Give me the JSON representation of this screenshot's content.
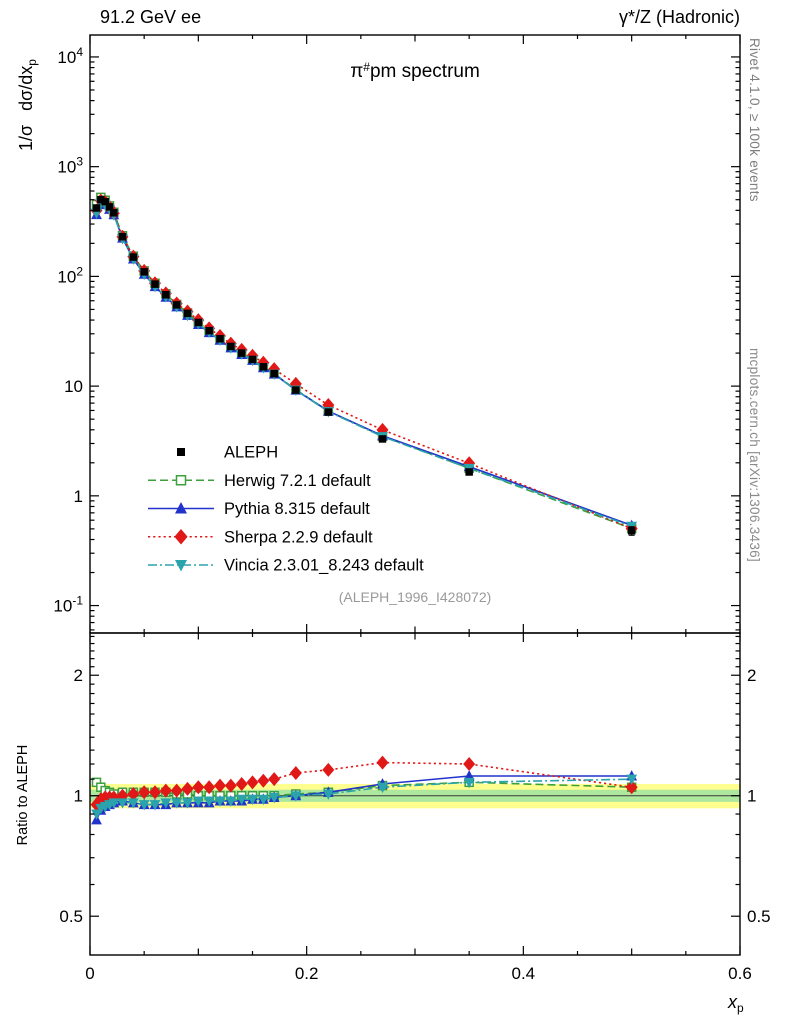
{
  "header": {
    "left": "91.2 GeV ee",
    "right": "γ*/Z (Hadronic)"
  },
  "title": {
    "prefix": "π",
    "sup": "#",
    "rest": "pm spectrum"
  },
  "watermark": "(ALEPH_1996_I428072)",
  "side_texts": {
    "top_right": "Rivet 4.1.0, ≥ 100k events",
    "bottom_right": "mcplots.cern.ch [arXiv:1306.3436]"
  },
  "axis_titles": {
    "y_prefix": "1/σ",
    "y_main": "dσ/dx",
    "y_sub": "p",
    "ratio": "Ratio to ALEPH",
    "x_main": "x",
    "x_sub": "p"
  },
  "chart_data": {
    "type": "scatter+line spectrum with ratio panel, log y axes",
    "x": [
      0.006,
      0.01,
      0.014,
      0.018,
      0.022,
      0.03,
      0.04,
      0.05,
      0.06,
      0.07,
      0.08,
      0.09,
      0.1,
      0.11,
      0.12,
      0.13,
      0.14,
      0.15,
      0.16,
      0.17,
      0.19,
      0.22,
      0.27,
      0.35,
      0.5
    ],
    "reference": {
      "name": "ALEPH",
      "marker": "square",
      "color": "#000000",
      "values": [
        420,
        500,
        480,
        430,
        380,
        230,
        150,
        110,
        85,
        68,
        55,
        46,
        38,
        32,
        27,
        23,
        20,
        17.5,
        15,
        13,
        9.2,
        5.8,
        3.3,
        1.65,
        0.48
      ],
      "rel_err": [
        0.06,
        0.05,
        0.04,
        0.04,
        0.04,
        0.03,
        0.03,
        0.03,
        0.03,
        0.03,
        0.03,
        0.03,
        0.03,
        0.03,
        0.03,
        0.03,
        0.03,
        0.03,
        0.03,
        0.03,
        0.035,
        0.04,
        0.05,
        0.06,
        0.09
      ]
    },
    "series": [
      {
        "name": "Herwig 7.2.1 default",
        "marker": "square-open",
        "color": "#3ca03c",
        "line": "dashed",
        "ratio": [
          1.08,
          1.05,
          1.03,
          1.02,
          1.01,
          1.02,
          1.02,
          1.02,
          1.02,
          1.02,
          1.01,
          1.01,
          1.0,
          1.0,
          1.0,
          1.0,
          1.0,
          1.0,
          1.0,
          1.0,
          1.01,
          1.02,
          1.06,
          1.08,
          1.05
        ]
      },
      {
        "name": "Pythia 8.315 default",
        "marker": "triangle-up",
        "color": "#2233cc",
        "line": "solid",
        "ratio": [
          0.87,
          0.92,
          0.94,
          0.95,
          0.96,
          0.97,
          0.96,
          0.95,
          0.95,
          0.95,
          0.96,
          0.96,
          0.96,
          0.96,
          0.97,
          0.97,
          0.97,
          0.98,
          0.98,
          0.99,
          1.0,
          1.02,
          1.07,
          1.12,
          1.12
        ]
      },
      {
        "name": "Sherpa 2.2.9 default",
        "marker": "diamond",
        "color": "#e01818",
        "line": "dotted",
        "ratio": [
          0.95,
          0.98,
          0.99,
          0.99,
          0.99,
          1.0,
          1.01,
          1.02,
          1.02,
          1.03,
          1.03,
          1.04,
          1.05,
          1.05,
          1.06,
          1.06,
          1.07,
          1.08,
          1.09,
          1.1,
          1.14,
          1.16,
          1.21,
          1.2,
          1.05
        ]
      },
      {
        "name": "Vincia 2.3.01_8.243 default",
        "marker": "triangle-down",
        "color": "#2aa3ad",
        "line": "dashdot",
        "ratio": [
          0.9,
          0.93,
          0.94,
          0.95,
          0.96,
          0.96,
          0.96,
          0.95,
          0.95,
          0.96,
          0.96,
          0.96,
          0.97,
          0.97,
          0.97,
          0.97,
          0.98,
          0.98,
          0.98,
          0.99,
          1.0,
          1.01,
          1.05,
          1.08,
          1.1
        ]
      }
    ],
    "x_axis": {
      "min": 0,
      "max": 0.6,
      "major": [
        0,
        0.2,
        0.4,
        0.6
      ],
      "labels": [
        "0",
        "0.2",
        "0.4",
        "0.6"
      ],
      "minor_step": 0.05
    },
    "y_axis": {
      "scale": "log",
      "log_min": -1.25,
      "log_max": 4.2,
      "decades": [
        -1,
        0,
        1,
        2,
        3,
        4
      ]
    },
    "ratio_axis": {
      "scale": "log",
      "min": 0.4,
      "max": 2.55,
      "major": [
        0.5,
        1,
        2
      ],
      "labels": [
        "0.5",
        "1",
        "2"
      ],
      "minor": [
        0.6,
        0.7,
        0.8,
        0.9,
        1.1,
        1.2,
        1.3,
        1.4,
        1.5,
        1.6,
        1.7,
        1.8,
        1.9,
        2.1,
        2.2,
        2.3,
        2.4,
        2.5
      ]
    },
    "band": {
      "outer_lo": 0.93,
      "outer_hi": 1.07,
      "outer_color": "#ffff8f",
      "inner_lo": 0.965,
      "inner_hi": 1.035,
      "inner_color": "#aee89e",
      "center_line_color": "#3a3a3a"
    },
    "legend_position": "middle-left of top panel",
    "grid": false
  }
}
